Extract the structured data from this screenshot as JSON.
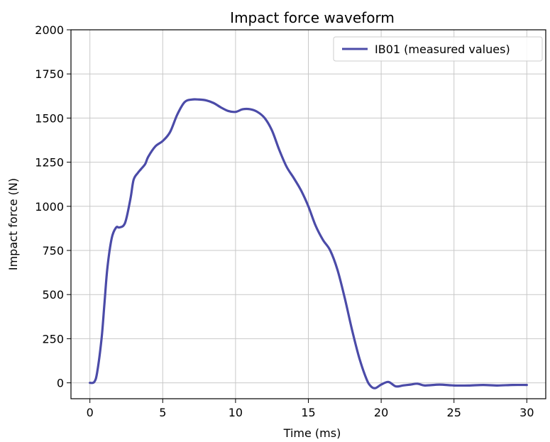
{
  "chart_data": {
    "type": "line",
    "title": "Impact force waveform",
    "xlabel": "Time (ms)",
    "ylabel": "Impact force (N)",
    "xlim": [
      -1.3,
      31.3
    ],
    "ylim": [
      -90,
      2000
    ],
    "x_ticks": [
      0,
      5,
      10,
      15,
      20,
      25,
      30
    ],
    "y_ticks": [
      0,
      250,
      500,
      750,
      1000,
      1250,
      1500,
      1750,
      2000
    ],
    "grid": true,
    "legend_position": "top-right",
    "series": [
      {
        "name": "IB01 (measured values)",
        "color": "#4b4ba8",
        "x": [
          0,
          0.3,
          0.5,
          0.8,
          1.0,
          1.2,
          1.5,
          1.8,
          2.0,
          2.3,
          2.5,
          2.8,
          3.0,
          3.3,
          3.5,
          3.8,
          4.0,
          4.5,
          5.0,
          5.5,
          6.0,
          6.5,
          7.0,
          7.5,
          8.0,
          8.5,
          9.0,
          9.5,
          10.0,
          10.5,
          11.0,
          11.5,
          12.0,
          12.5,
          13.0,
          13.5,
          14.0,
          14.5,
          15.0,
          15.5,
          16.0,
          16.5,
          17.0,
          17.5,
          18.0,
          18.5,
          19.0,
          19.3,
          19.6,
          20.0,
          20.5,
          21.0,
          21.5,
          22.0,
          22.5,
          23.0,
          24.0,
          25.0,
          26.0,
          27.0,
          28.0,
          29.0,
          30.0
        ],
        "y": [
          0,
          5,
          60,
          250,
          450,
          650,
          820,
          880,
          880,
          890,
          930,
          1050,
          1150,
          1190,
          1210,
          1240,
          1280,
          1340,
          1370,
          1420,
          1520,
          1590,
          1605,
          1605,
          1600,
          1585,
          1560,
          1540,
          1535,
          1550,
          1550,
          1535,
          1500,
          1430,
          1320,
          1225,
          1160,
          1090,
          1000,
          890,
          810,
          750,
          640,
          480,
          300,
          140,
          20,
          -20,
          -30,
          -10,
          5,
          -20,
          -15,
          -10,
          -5,
          -15,
          -10,
          -15,
          -15,
          -12,
          -15,
          -12,
          -12
        ]
      }
    ]
  }
}
